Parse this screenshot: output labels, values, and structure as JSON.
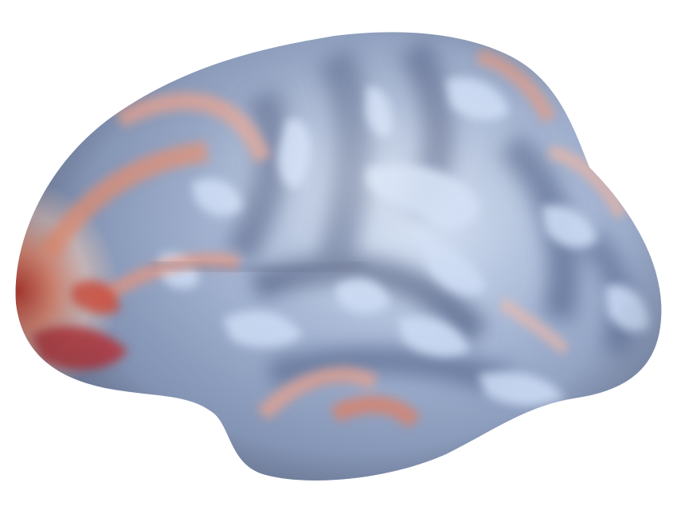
{
  "scene": {
    "background": "#ffffff",
    "subject": "inflated-cortical-surface",
    "colormap": {
      "high": "#b2182b",
      "mid_high": "#ef8a62",
      "neutral": "#f4e6df",
      "mid_low": "#c6d8f2",
      "low": "#7e8fb0",
      "deep_low": "#4a5878"
    }
  }
}
